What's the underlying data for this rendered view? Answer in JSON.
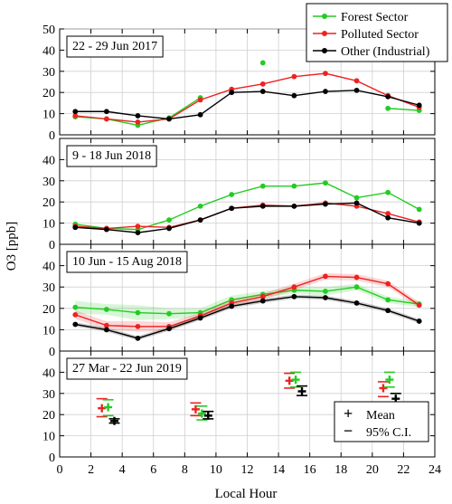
{
  "chart_data": {
    "type": "line",
    "ylabel": "O3 [ppb]",
    "xlabel": "Local Hour",
    "xlim": [
      0,
      24
    ],
    "xticks": [
      0,
      2,
      4,
      6,
      8,
      10,
      12,
      14,
      16,
      18,
      20,
      22,
      24
    ],
    "grid": true,
    "legend": {
      "placement": "top-right",
      "entries": [
        {
          "name": "Forest Sector",
          "color": "#22cc22"
        },
        {
          "name": "Polluted Sector",
          "color": "#ee2222"
        },
        {
          "name": "Other (Industrial)",
          "color": "#000000"
        }
      ]
    },
    "stats_legend": {
      "placement": "bottom-right",
      "entries": [
        {
          "symbol": "+",
          "label": "Mean"
        },
        {
          "symbol": "−",
          "label": "95% C.I."
        }
      ]
    },
    "panels": [
      {
        "label": "22 - 29 Jun 2017",
        "ylim": [
          0,
          50
        ],
        "yticks": [
          0,
          10,
          20,
          30,
          40,
          50
        ],
        "series": [
          {
            "name": "Forest Sector",
            "color": "#22cc22",
            "x": [
              1,
              3,
              5,
              7,
              9
            ],
            "y": [
              8.5,
              7.5,
              4.5,
              8,
              17.5
            ]
          },
          {
            "name": "Forest Sector",
            "color": "#22cc22",
            "x": [
              13
            ],
            "y": [
              34
            ]
          },
          {
            "name": "Forest Sector",
            "color": "#22cc22",
            "x": [
              21,
              23
            ],
            "y": [
              12.5,
              11.5
            ]
          },
          {
            "name": "Polluted Sector",
            "color": "#ee2222",
            "x": [
              1,
              3,
              5,
              7,
              9,
              11,
              13,
              15,
              17,
              19,
              21,
              23
            ],
            "y": [
              9,
              7.5,
              6,
              7.5,
              16.5,
              21.5,
              24,
              27.5,
              29,
              25.5,
              18.5,
              13
            ]
          },
          {
            "name": "Other (Industrial)",
            "color": "#000000",
            "x": [
              1,
              3,
              5,
              7,
              9,
              11,
              13,
              15,
              17,
              19,
              21,
              23
            ],
            "y": [
              11,
              11,
              9,
              7.5,
              9.5,
              20,
              20.5,
              18.5,
              20.5,
              21,
              18,
              14
            ]
          }
        ]
      },
      {
        "label": "9 - 18 Jun 2018",
        "ylim": [
          0,
          50
        ],
        "yticks": [
          0,
          10,
          20,
          30,
          40
        ],
        "series": [
          {
            "name": "Forest Sector",
            "color": "#22cc22",
            "x": [
              1,
              3,
              5,
              7,
              9,
              11,
              13,
              15,
              17,
              19,
              21,
              23
            ],
            "y": [
              9.5,
              7.5,
              7,
              11.5,
              18,
              23.5,
              27.5,
              27.5,
              29,
              22,
              24.5,
              16.5
            ]
          },
          {
            "name": "Polluted Sector",
            "color": "#ee2222",
            "x": [
              1,
              3,
              5,
              7,
              9,
              11,
              13,
              15,
              17,
              19,
              21,
              23
            ],
            "y": [
              8.5,
              7.5,
              8.5,
              8,
              11.5,
              17,
              18.5,
              18,
              19.5,
              18,
              14.5,
              10.5
            ]
          },
          {
            "name": "Other (Industrial)",
            "color": "#000000",
            "x": [
              1,
              3,
              5,
              7,
              9,
              11,
              13,
              15,
              17,
              19,
              21,
              23
            ],
            "y": [
              8,
              7,
              5.5,
              7.5,
              11.5,
              17,
              18,
              18,
              19,
              19.5,
              12.5,
              10
            ]
          }
        ]
      },
      {
        "label": "10 Jun - 15 Aug 2018",
        "ylim": [
          0,
          50
        ],
        "yticks": [
          0,
          10,
          20,
          30,
          40
        ],
        "series": [
          {
            "name": "Forest Sector",
            "color": "#22cc22",
            "x": [
              1,
              3,
              5,
              7,
              9,
              11,
              13,
              15,
              17,
              19,
              21,
              23
            ],
            "y": [
              20.5,
              19.5,
              18,
              17.5,
              18,
              24,
              26.5,
              28.5,
              28,
              30,
              24,
              22
            ],
            "ci": [
              3,
              2.5,
              3.5,
              2.5,
              2,
              2,
              1.5,
              1.5,
              2,
              1.5,
              1.5,
              1.5
            ]
          },
          {
            "name": "Polluted Sector",
            "color": "#ee2222",
            "x": [
              1,
              3,
              5,
              7,
              9,
              11,
              13,
              15,
              17,
              19,
              21,
              23
            ],
            "y": [
              17,
              12,
              11.5,
              11.5,
              16.5,
              22.5,
              25.5,
              30,
              35,
              34.5,
              31.5,
              21.5
            ],
            "ci": [
              2,
              2,
              2.5,
              2,
              1.5,
              1.5,
              1.5,
              1.5,
              1.5,
              1.5,
              1.5,
              1.5
            ]
          },
          {
            "name": "Other (Industrial)",
            "color": "#000000",
            "x": [
              1,
              3,
              5,
              7,
              9,
              11,
              13,
              15,
              17,
              19,
              21,
              23
            ],
            "y": [
              12.5,
              10,
              6,
              10.5,
              15.5,
              21,
              23.5,
              25.5,
              25,
              22.5,
              19,
              14
            ],
            "ci": [
              1,
              1,
              1,
              1,
              1,
              1,
              1,
              1,
              1,
              1,
              1,
              1
            ]
          }
        ]
      },
      {
        "label": "27 Mar - 22 Jun 2019",
        "ylim": [
          0,
          50
        ],
        "yticks": [
          0,
          10,
          20,
          30,
          40
        ],
        "grouped": true,
        "series": [
          {
            "name": "Polluted Sector",
            "color": "#ee2222",
            "x": [
              2.7,
              8.7,
              14.7,
              20.7
            ],
            "y": [
              23,
              22.5,
              36,
              32.5
            ],
            "ci_low": [
              19,
              19.5,
              32.5,
              28.5
            ],
            "ci_high": [
              27.5,
              25.5,
              39.5,
              35.5
            ]
          },
          {
            "name": "Forest Sector",
            "color": "#22cc22",
            "x": [
              3.1,
              9.1,
              15.1,
              21.1
            ],
            "y": [
              23.5,
              20.5,
              36.5,
              36.5
            ],
            "ci_low": [
              19.5,
              17.5,
              33,
              33
            ],
            "ci_high": [
              27,
              24,
              40,
              40
            ]
          },
          {
            "name": "Other (Industrial)",
            "color": "#000000",
            "x": [
              3.5,
              9.5,
              15.5,
              21.5
            ],
            "y": [
              17,
              19.5,
              31,
              27.5
            ],
            "ci_low": [
              16,
              18,
              29,
              25
            ],
            "ci_high": [
              18,
              21.5,
              33.5,
              30
            ]
          }
        ]
      }
    ]
  }
}
